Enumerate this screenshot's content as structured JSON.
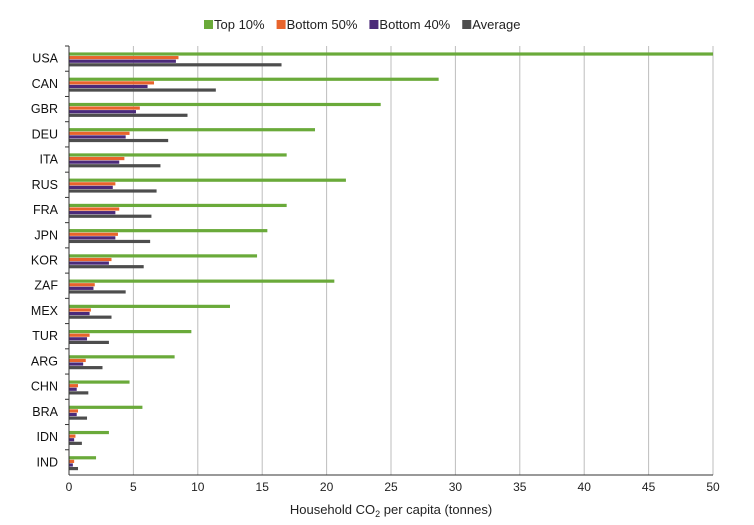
{
  "chart_data": {
    "type": "bar",
    "orientation": "horizontal",
    "categories": [
      "USA",
      "CAN",
      "GBR",
      "DEU",
      "ITA",
      "RUS",
      "FRA",
      "JPN",
      "KOR",
      "ZAF",
      "MEX",
      "TUR",
      "ARG",
      "CHN",
      "BRA",
      "IDN",
      "IND"
    ],
    "series": [
      {
        "name": "Top 10%",
        "color": "#6aaa3a",
        "values": [
          50,
          28.7,
          24.2,
          19.1,
          16.9,
          21.5,
          16.9,
          15.4,
          14.6,
          20.6,
          12.5,
          9.5,
          8.2,
          4.7,
          5.7,
          3.1,
          2.1
        ]
      },
      {
        "name": "Bottom 50%",
        "color": "#e8642c",
        "values": [
          8.5,
          6.6,
          5.5,
          4.7,
          4.3,
          3.6,
          3.9,
          3.8,
          3.3,
          2.0,
          1.7,
          1.6,
          1.3,
          0.7,
          0.7,
          0.5,
          0.4
        ]
      },
      {
        "name": "Bottom 40%",
        "color": "#4b2a7a",
        "values": [
          8.3,
          6.1,
          5.2,
          4.4,
          3.9,
          3.4,
          3.6,
          3.6,
          3.1,
          1.9,
          1.6,
          1.4,
          1.1,
          0.6,
          0.6,
          0.4,
          0.3
        ]
      },
      {
        "name": "Average",
        "color": "#4d4d4d",
        "values": [
          16.5,
          11.4,
          9.2,
          7.7,
          7.1,
          6.8,
          6.4,
          6.3,
          5.8,
          4.4,
          3.3,
          3.1,
          2.6,
          1.5,
          1.4,
          1.0,
          0.7
        ]
      }
    ],
    "xlabel_prefix": "Household CO",
    "xlabel_sub": "2",
    "xlabel_suffix": " per capita (tonnes)",
    "xlim": [
      0,
      50
    ],
    "xticks": [
      0,
      5,
      10,
      15,
      20,
      25,
      30,
      35,
      40,
      45,
      50
    ],
    "grid": "vertical",
    "legend_position": "top"
  }
}
